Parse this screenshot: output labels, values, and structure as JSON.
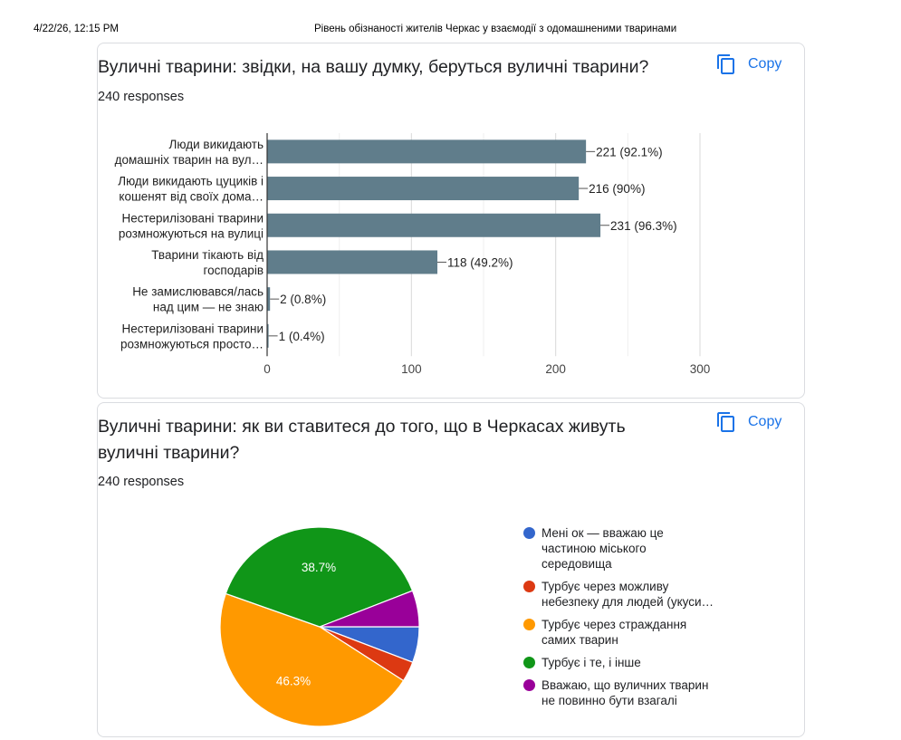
{
  "print_header": {
    "datetime": "4/22/26, 12:15 PM",
    "form_title": "Рівень обізнаності жителів Черкас у взаємодії з одомашненими тваринами"
  },
  "copy_label": "Copy",
  "icons": {
    "copy": "copy-icon"
  },
  "colors": {
    "bar": "#607d8b",
    "accent": "#1a73e8",
    "pie": [
      "#3366cc",
      "#dc3912",
      "#ff9900",
      "#109618",
      "#990099"
    ]
  },
  "questions": [
    {
      "title": "Вуличні тварини: звідки, на вашу думку, беруться вуличні тварини?",
      "responses": "240 responses"
    },
    {
      "title": "Вуличні тварини: як ви ставитеся до того, що в Черкасах живуть вуличні тварини?",
      "responses": "240 responses"
    }
  ],
  "chart_data": [
    {
      "type": "bar",
      "orientation": "horizontal",
      "categories": [
        [
          "Люди викидають",
          "домашніх тварин на вул…"
        ],
        [
          "Люди викидають цуциків і",
          "кошенят від своїх дома…"
        ],
        [
          "Нестерилізовані тварини",
          "розмножуються на вулиці"
        ],
        [
          "Тварини тікають від",
          "господарів"
        ],
        [
          "Не замислювався/лась",
          "над цим — не знаю"
        ],
        [
          "Нестерилізовані тварини",
          "розмножуються просто…"
        ]
      ],
      "values": [
        221,
        216,
        231,
        118,
        2,
        1
      ],
      "data_labels": [
        "221 (92.1%)",
        "216 (90%)",
        "231 (96.3%)",
        "118 (49.2%)",
        "2 (0.8%)",
        "1 (0.4%)"
      ],
      "xlim": [
        0,
        300
      ],
      "xticks": [
        0,
        100,
        200,
        300
      ],
      "grid": true
    },
    {
      "type": "pie",
      "labels": [
        [
          "Мені ок — вважаю це",
          "частиною міського",
          "середовища"
        ],
        [
          "Турбує через можливу",
          "небезпеку для людей (укуси…"
        ],
        [
          "Турбує через страждання",
          "самих тварин"
        ],
        [
          "Турбує і те, і інше"
        ],
        [
          "Вважаю, що вуличних тварин",
          "не повинно бути взагалі"
        ]
      ],
      "values": [
        5.8,
        3.3,
        46.3,
        38.7,
        5.9
      ],
      "slice_labels": [
        "",
        "",
        "46.3%",
        "38.7%",
        ""
      ],
      "legend_position": "right"
    }
  ]
}
